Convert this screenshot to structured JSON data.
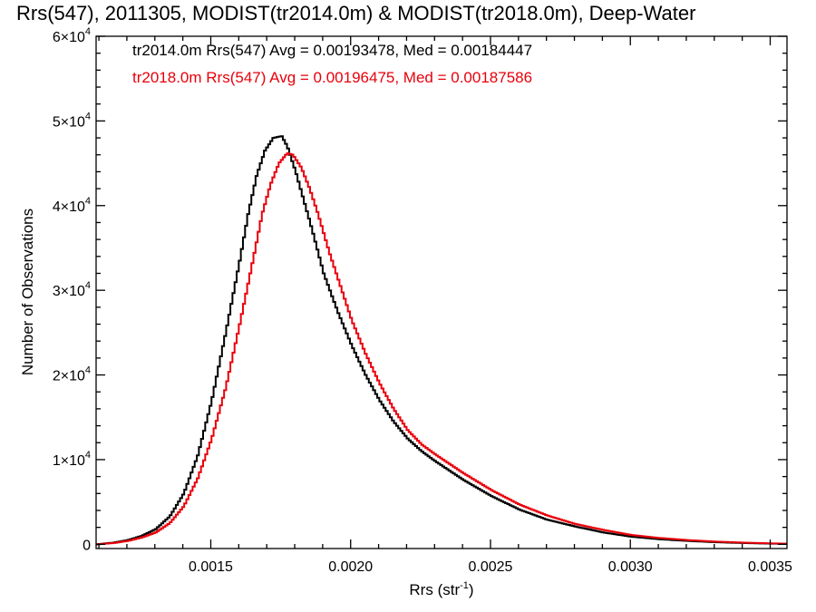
{
  "chart_data": {
    "type": "line",
    "title": "Rrs(547), 2011305, MODIST(tr2014.0m) & MODIST(tr2018.0m), Deep-Water",
    "xlabel": "Rrs (str",
    "xlabel_sup": "-1",
    "xlabel_suffix": ")",
    "ylabel": "Number of Observations",
    "xlim": [
      0.00109,
      0.00356
    ],
    "ylim": [
      -500,
      60000
    ],
    "x_ticks": [
      {
        "value": 0.0015,
        "label": "0.0015"
      },
      {
        "value": 0.002,
        "label": "0.0020"
      },
      {
        "value": 0.0025,
        "label": "0.0025"
      },
      {
        "value": 0.003,
        "label": "0.0030"
      },
      {
        "value": 0.0035,
        "label": "0.0035"
      }
    ],
    "y_ticks": [
      {
        "value": 0,
        "mant": "0",
        "exp": ""
      },
      {
        "value": 10000,
        "mant": "1×10",
        "exp": "4"
      },
      {
        "value": 20000,
        "mant": "2×10",
        "exp": "4"
      },
      {
        "value": 30000,
        "mant": "3×10",
        "exp": "4"
      },
      {
        "value": 40000,
        "mant": "4×10",
        "exp": "4"
      },
      {
        "value": 50000,
        "mant": "5×10",
        "exp": "4"
      },
      {
        "value": 60000,
        "mant": "6×10",
        "exp": "4"
      }
    ],
    "legend": [
      {
        "text": "tr2014.0m Rrs(547) Avg = 0.00193478, Med = 0.00184447",
        "color": "#000000"
      },
      {
        "text": "tr2018.0m Rrs(547) Avg = 0.00196475, Med = 0.00187586",
        "color": "#e8000b"
      }
    ],
    "series": [
      {
        "color": "#000000",
        "x": [
          0.00109,
          0.00115,
          0.0012,
          0.00125,
          0.0013,
          0.00135,
          0.0014,
          0.00145,
          0.0015,
          0.00155,
          0.0016,
          0.00163,
          0.00166,
          0.00169,
          0.00172,
          0.00175,
          0.00177,
          0.0018,
          0.00183,
          0.00186,
          0.0019,
          0.00195,
          0.002,
          0.00205,
          0.0021,
          0.00215,
          0.0022,
          0.00225,
          0.0023,
          0.0024,
          0.0025,
          0.0026,
          0.0027,
          0.0028,
          0.0029,
          0.003,
          0.0031,
          0.0032,
          0.0033,
          0.0034,
          0.0035,
          0.00356
        ],
        "y": [
          0,
          200,
          500,
          1000,
          1800,
          3300,
          6000,
          10500,
          17000,
          25000,
          33500,
          39000,
          43500,
          46500,
          48000,
          48200,
          47000,
          44000,
          40500,
          37000,
          32000,
          27500,
          23500,
          20000,
          17000,
          14500,
          12500,
          11000,
          9800,
          7600,
          5700,
          4100,
          2900,
          2100,
          1400,
          900,
          600,
          400,
          250,
          150,
          80,
          50
        ]
      },
      {
        "color": "#e8000b",
        "x": [
          0.00109,
          0.00115,
          0.0012,
          0.00125,
          0.0013,
          0.00135,
          0.0014,
          0.00145,
          0.0015,
          0.00155,
          0.0016,
          0.00165,
          0.00168,
          0.00171,
          0.00174,
          0.00177,
          0.00179,
          0.00182,
          0.00185,
          0.00188,
          0.00192,
          0.00196,
          0.002,
          0.00205,
          0.0021,
          0.00215,
          0.0022,
          0.00225,
          0.0023,
          0.0024,
          0.0025,
          0.0026,
          0.0027,
          0.0028,
          0.0029,
          0.003,
          0.0031,
          0.0032,
          0.0033,
          0.0034,
          0.0035,
          0.00356
        ],
        "y": [
          0,
          150,
          400,
          800,
          1400,
          2500,
          4500,
          7800,
          12500,
          18500,
          26000,
          34000,
          39000,
          42500,
          45000,
          46200,
          46000,
          44500,
          42000,
          39000,
          34500,
          30500,
          26500,
          22500,
          19000,
          16000,
          13500,
          11800,
          10600,
          8400,
          6400,
          4700,
          3400,
          2400,
          1700,
          1100,
          750,
          500,
          320,
          200,
          110,
          70
        ]
      }
    ]
  }
}
